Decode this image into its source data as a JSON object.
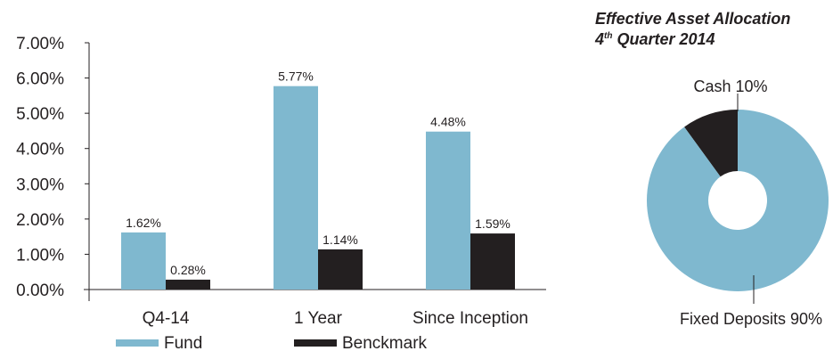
{
  "chart_data": [
    {
      "type": "bar",
      "categories": [
        "Q4-14",
        "1 Year",
        "Since Inception"
      ],
      "series": [
        {
          "name": "Fund",
          "values": [
            1.62,
            5.77,
            4.48
          ],
          "labels": [
            "1.62%",
            "5.77%",
            "4.48%"
          ],
          "color": "#7fb8cf"
        },
        {
          "name": "Benckmark",
          "values": [
            0.28,
            1.14,
            1.59
          ],
          "labels": [
            "0.28%",
            "1.14%",
            "1.59%"
          ],
          "color": "#231f20"
        }
      ],
      "yticks": [
        0,
        1,
        2,
        3,
        4,
        5,
        6,
        7
      ],
      "ytick_labels": [
        "0.00%",
        "1.00%",
        "2.00%",
        "3.00%",
        "4.00%",
        "5.00%",
        "6.00%",
        "7.00%"
      ],
      "ylim": [
        0,
        7
      ],
      "grid": false,
      "legend": "bottom"
    },
    {
      "type": "pie",
      "title_line1": "Effective Asset Allocation",
      "title_line2_num": "4",
      "title_line2_sup": "th",
      "title_line2_rest": " Quarter 2014",
      "slices": [
        {
          "label": "Cash 10%",
          "value": 10,
          "color": "#231f20"
        },
        {
          "label": "Fixed Deposits 90%",
          "value": 90,
          "color": "#7fb8cf"
        }
      ],
      "donut": true
    }
  ]
}
